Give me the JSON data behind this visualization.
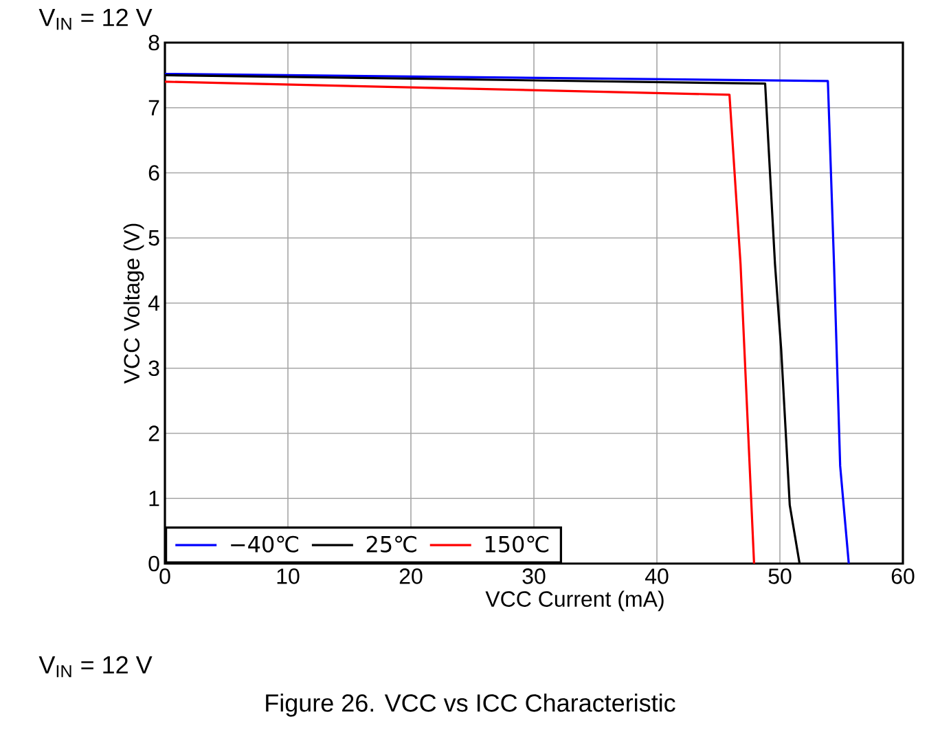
{
  "chart_data": {
    "type": "line",
    "title": "Figure 26. VCC vs ICC Characteristic",
    "xlabel": "VCC Current (mA)",
    "ylabel": "VCC Voltage (V)",
    "annotations": [
      "V$_{IN}$ = 12 V",
      "V$_{IN}$ = 12 V"
    ],
    "xlim": [
      0,
      60
    ],
    "ylim": [
      0,
      8
    ],
    "xticks": [
      0,
      10,
      20,
      30,
      40,
      50,
      60
    ],
    "yticks": [
      0,
      1,
      2,
      3,
      4,
      5,
      6,
      7,
      8
    ],
    "grid": true,
    "legend": "bottom left",
    "marker": "none",
    "line_style": "solid",
    "series": [
      {
        "name": "−40℃",
        "color": "#0000ff",
        "x": [
          0,
          53.9,
          54.4,
          54.9,
          55.6
        ],
        "values": [
          7.52,
          7.41,
          4.6,
          1.5,
          0
        ]
      },
      {
        "name": "25℃",
        "color": "#000000",
        "x": [
          0,
          48.8,
          49.6,
          50.1,
          50.8,
          51.6
        ],
        "values": [
          7.5,
          7.37,
          4.6,
          3.3,
          0.9,
          0
        ]
      },
      {
        "name": "150℃",
        "color": "#ff0000",
        "x": [
          0,
          45.9,
          46.8,
          47.9
        ],
        "values": [
          7.4,
          7.2,
          4.6,
          0
        ]
      }
    ]
  }
}
